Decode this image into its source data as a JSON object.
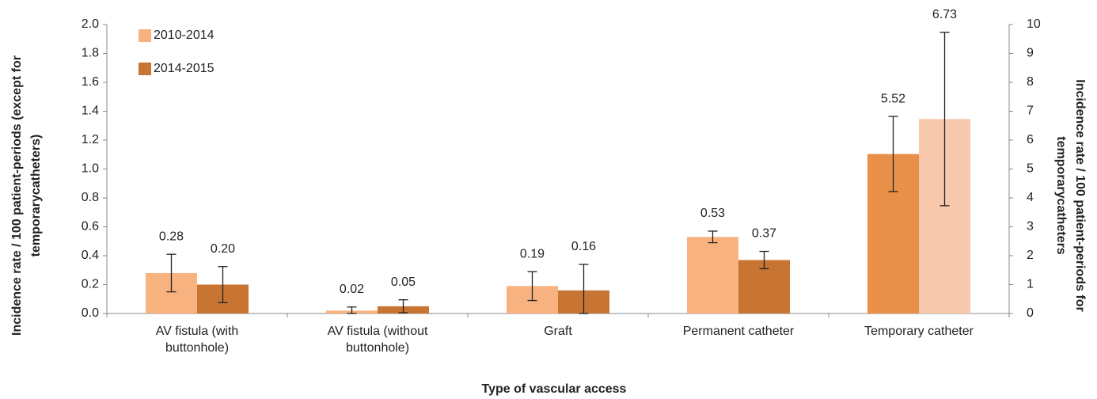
{
  "chart_data": {
    "type": "bar",
    "xlabel": "Type of vascular  access",
    "ylabel": [
      "Incidence rate / 100 patient-periods (except for",
      "temporarycatheters)"
    ],
    "y2label": [
      "Incidence rate / 100 patient-periods for",
      "temporarycatheters"
    ],
    "categories": [
      "AV fistula  (with buttonhole)",
      "AV fistula  (without buttonhole)",
      "Graft",
      "Permanent catheter",
      "Temporary catheter"
    ],
    "y2_categories": [
      "Temporary catheter"
    ],
    "series": [
      {
        "name": "2010-2014",
        "color": "#F7B27F",
        "colors": [
          "#F7B27F",
          "#F7B27F",
          "#F7B27F",
          "#F7B27F",
          "#E8904A"
        ],
        "values": [
          0.28,
          0.02,
          0.19,
          0.53,
          5.52
        ],
        "value_labels": [
          "0.28",
          "0.02",
          "0.19",
          "0.53",
          "5.52"
        ],
        "errors": [
          0.13,
          0.025,
          0.1,
          0.04,
          1.3
        ]
      },
      {
        "name": "2014-2015",
        "color": "#C87533",
        "colors": [
          "#C87533",
          "#C87533",
          "#C87533",
          "#C87533",
          "#F8C8AD"
        ],
        "values": [
          0.2,
          0.05,
          0.16,
          0.37,
          6.73
        ],
        "value_labels": [
          "0.20",
          "0.05",
          "0.16",
          "0.37",
          "6.73"
        ],
        "errors": [
          0.125,
          0.045,
          0.18,
          0.06,
          3.0
        ]
      }
    ],
    "ylim": [
      0,
      2
    ],
    "yticks": [
      {
        "value": 0,
        "label": "0.0"
      },
      {
        "value": 0.2,
        "label": "0.2"
      },
      {
        "value": 0.4,
        "label": "0.4"
      },
      {
        "value": 0.6,
        "label": "0.6"
      },
      {
        "value": 0.8,
        "label": "0.8"
      },
      {
        "value": 1,
        "label": "1.0"
      },
      {
        "value": 1.2,
        "label": "1.2"
      },
      {
        "value": 1.4,
        "label": "1.4"
      },
      {
        "value": 1.6,
        "label": "1.6"
      },
      {
        "value": 1.8,
        "label": "1.8"
      },
      {
        "value": 2,
        "label": "2.0"
      }
    ],
    "y2lim": [
      0,
      10
    ],
    "y2ticks": [
      0,
      1,
      2,
      3,
      4,
      5,
      6,
      7,
      8,
      9,
      10
    ],
    "legend": "top-left",
    "grid": false
  }
}
